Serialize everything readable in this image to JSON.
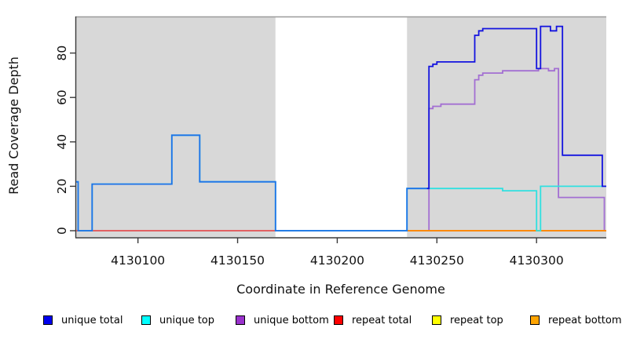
{
  "y_axis": {
    "label": "Read Coverage Depth",
    "tick_labels": [
      "0",
      "20",
      "40",
      "60",
      "80"
    ],
    "tick_values": [
      0,
      20,
      40,
      60,
      80
    ]
  },
  "x_axis": {
    "label": "Coordinate in Reference Genome",
    "tick_labels": [
      "4130100",
      "4130150",
      "4130200",
      "4130250",
      "4130300"
    ],
    "tick_values": [
      4130100,
      4130150,
      4130200,
      4130250,
      4130300
    ]
  },
  "legend": {
    "items": [
      {
        "label": "unique total",
        "color": "#0000EE"
      },
      {
        "label": "unique top",
        "color": "#00FFFF"
      },
      {
        "label": "unique bottom",
        "color": "#9A32CD"
      },
      {
        "label": "repeat total",
        "color": "#FF0000"
      },
      {
        "label": "repeat top",
        "color": "#FFFF00"
      },
      {
        "label": "repeat bottom",
        "color": "#FFA500"
      }
    ]
  },
  "chart_data": {
    "type": "line",
    "step": true,
    "title": "",
    "xlabel": "Coordinate in Reference Genome",
    "ylabel": "Read Coverage Depth",
    "xlim": [
      4130069,
      4130335
    ],
    "ylim": [
      0,
      96.5
    ],
    "grid": false,
    "legend_position": "bottom",
    "background_regions": [
      {
        "x0": 4130069,
        "x1": 4130169,
        "color": "#D8D8D8"
      },
      {
        "x0": 4130235,
        "x1": 4130335,
        "color": "#D8D8D8"
      }
    ],
    "series": [
      {
        "name": "unique bottom",
        "segments": [
          {
            "color": "#A36FD2",
            "points": [
              [
                4130069,
                0
              ],
              [
                4130246,
                55
              ],
              [
                4130248,
                56
              ],
              [
                4130252,
                57
              ],
              [
                4130269,
                68
              ],
              [
                4130271,
                70
              ],
              [
                4130273,
                71
              ],
              [
                4130283,
                72
              ],
              [
                4130301,
                73
              ],
              [
                4130306,
                72
              ],
              [
                4130309,
                73
              ],
              [
                4130311,
                15
              ],
              [
                4130334,
                0
              ],
              [
                4130335,
                0
              ]
            ]
          }
        ]
      },
      {
        "name": "repeat top",
        "segments": [
          {
            "color": "#E8E800",
            "points": [
              [
                4130069,
                0
              ],
              [
                4130169,
                0
              ]
            ]
          },
          {
            "color": "#E8E800",
            "points": [
              [
                4130235,
                0
              ],
              [
                4130335,
                0
              ]
            ]
          }
        ]
      },
      {
        "name": "repeat total",
        "segments": [
          {
            "color": "#E25069",
            "points": [
              [
                4130069,
                0
              ],
              [
                4130169,
                0
              ]
            ]
          },
          {
            "color": "#E25069",
            "points": [
              [
                4130235,
                0
              ],
              [
                4130335,
                0
              ]
            ]
          }
        ]
      },
      {
        "name": "repeat bottom",
        "segments": [
          {
            "color": "#FF8C00",
            "points": [
              [
                4130235,
                0
              ],
              [
                4130335,
                0
              ]
            ]
          }
        ]
      },
      {
        "name": "unique top",
        "segments": [
          {
            "color": "#30E0E0",
            "points": [
              [
                4130069,
                22
              ],
              [
                4130070,
                0
              ],
              [
                4130077,
                21
              ],
              [
                4130117,
                43
              ],
              [
                4130131,
                22
              ],
              [
                4130169,
                0
              ],
              [
                4130235,
                19
              ],
              [
                4130283,
                18
              ],
              [
                4130300,
                0
              ],
              [
                4130302,
                20
              ],
              [
                4130335,
                20
              ]
            ]
          }
        ]
      },
      {
        "name": "unique total",
        "segments": [
          {
            "color": "#1E72E8",
            "points": [
              [
                4130069,
                22
              ],
              [
                4130070,
                0
              ],
              [
                4130077,
                21
              ],
              [
                4130117,
                43
              ],
              [
                4130131,
                22
              ],
              [
                4130169,
                0
              ],
              [
                4130235,
                19
              ],
              [
                4130245,
                19
              ]
            ]
          },
          {
            "color": "#1313DF",
            "points": [
              [
                4130245,
                19
              ],
              [
                4130246,
                74
              ],
              [
                4130248,
                75
              ],
              [
                4130250,
                76
              ],
              [
                4130269,
                88
              ],
              [
                4130271,
                90
              ],
              [
                4130273,
                91
              ],
              [
                4130300,
                73
              ],
              [
                4130302,
                92
              ],
              [
                4130307,
                90
              ],
              [
                4130310,
                92
              ],
              [
                4130313,
                34
              ],
              [
                4130333,
                20
              ],
              [
                4130335,
                20
              ]
            ]
          }
        ]
      }
    ]
  }
}
